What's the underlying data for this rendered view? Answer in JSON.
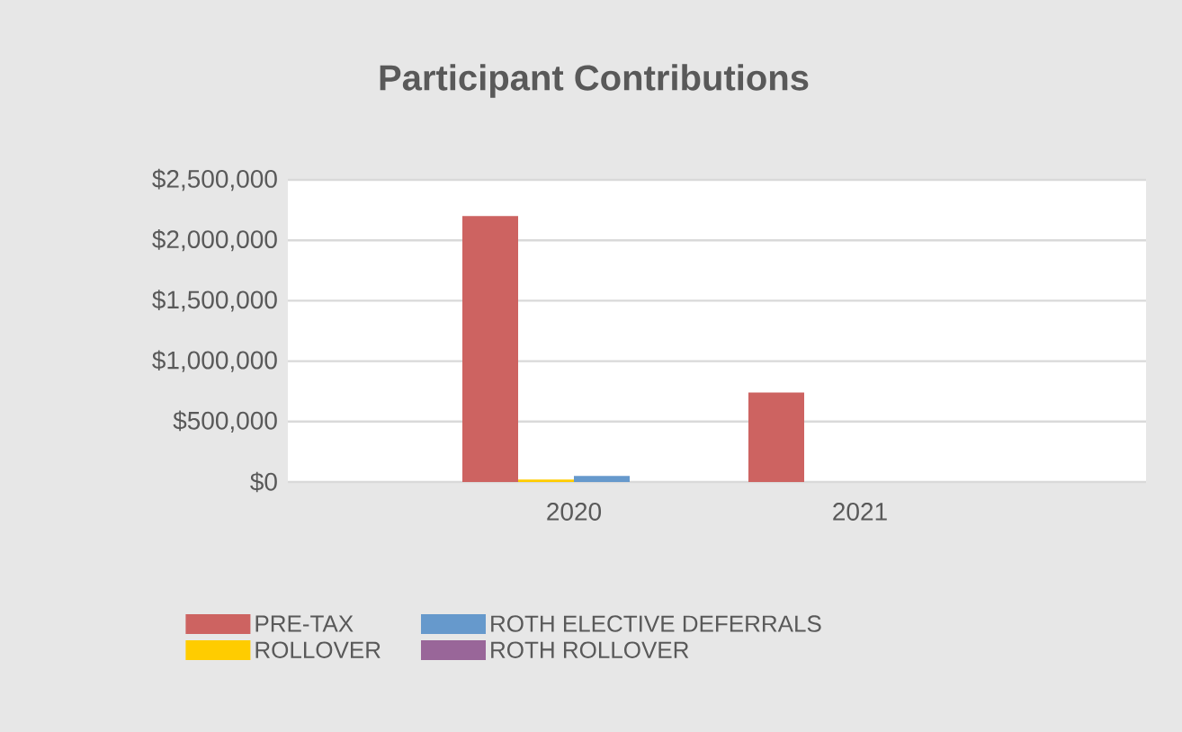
{
  "chart_data": {
    "type": "bar",
    "title": "Participant Contributions",
    "categories": [
      "2020",
      "2021"
    ],
    "series": [
      {
        "name": "PRE-TAX",
        "color": "#cd6361",
        "values": [
          2200000,
          740000
        ]
      },
      {
        "name": "ROLLOVER",
        "color": "#ffcc00",
        "values": [
          20000,
          0
        ]
      },
      {
        "name": "ROTH ELECTIVE DEFERRALS",
        "color": "#6699cc",
        "values": [
          50000,
          0
        ]
      },
      {
        "name": "ROTH ROLLOVER",
        "color": "#996699",
        "values": [
          0,
          0
        ]
      }
    ],
    "ylim": [
      0,
      2500000
    ],
    "yticks": [
      {
        "value": 0,
        "label": "$0"
      },
      {
        "value": 500000,
        "label": "$500,000"
      },
      {
        "value": 1000000,
        "label": "$1,000,000"
      },
      {
        "value": 1500000,
        "label": "$1,500,000"
      },
      {
        "value": 2000000,
        "label": "$2,000,000"
      },
      {
        "value": 2500000,
        "label": "$2,500,000"
      }
    ],
    "grid": "y",
    "legend": "bottom"
  }
}
